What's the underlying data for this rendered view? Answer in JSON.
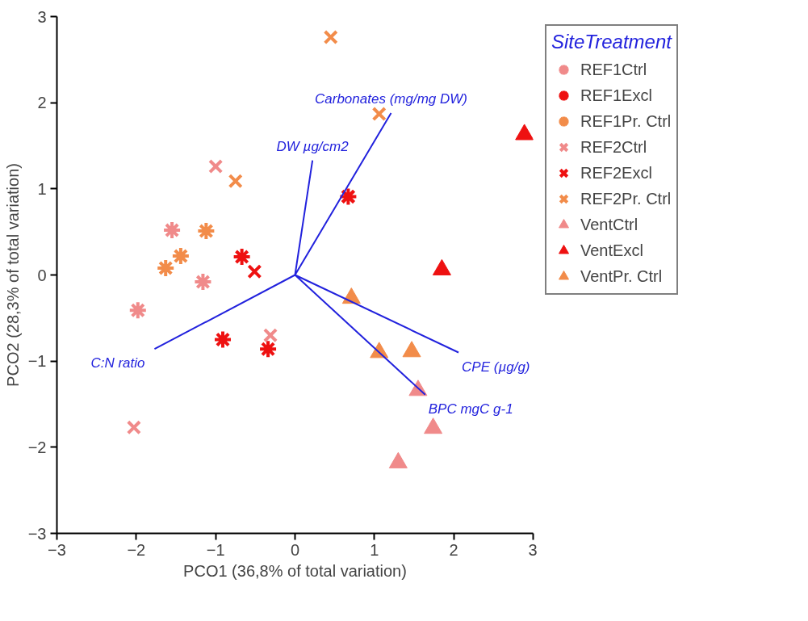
{
  "chart_data": {
    "type": "scatter",
    "xlabel": "PCO1 (36,8% of total variation)",
    "ylabel": "PCO2 (28,3% of total variation)",
    "legend_title": "SiteTreatment",
    "legend": "right",
    "grid": false,
    "xlim": [
      -3,
      3
    ],
    "ylim": [
      -3,
      3
    ],
    "xticks": [
      -3,
      -2,
      -1,
      0,
      1,
      2,
      3
    ],
    "yticks": [
      -3,
      -2,
      -1,
      0,
      1,
      2,
      3
    ],
    "series": [
      {
        "name": "REF1Ctrl",
        "color": "#f08a8a",
        "marker": "cross",
        "x": [
          -1.55,
          -1.16,
          -1.98
        ],
        "values": [
          0.52,
          -0.08,
          -0.41
        ]
      },
      {
        "name": "REF1Excl",
        "color": "#ee1111",
        "marker": "cross",
        "x": [
          -0.67,
          -0.91,
          -0.34,
          0.67
        ],
        "values": [
          0.21,
          -0.75,
          -0.86,
          0.91
        ]
      },
      {
        "name": "REF1Pr. Ctrl",
        "color": "#f28c4a",
        "marker": "cross",
        "x": [
          -1.63,
          -1.44,
          -1.12
        ],
        "values": [
          0.08,
          0.22,
          0.51
        ]
      },
      {
        "name": "REF2Ctrl",
        "color": "#f08a8a",
        "marker": "x",
        "x": [
          -1.0,
          -2.03,
          -0.31
        ],
        "values": [
          1.26,
          -1.77,
          -0.7
        ]
      },
      {
        "name": "REF2Excl",
        "color": "#ee1111",
        "marker": "x",
        "x": [
          -0.51,
          0.67
        ],
        "values": [
          0.04,
          0.91
        ]
      },
      {
        "name": "REF2Pr. Ctrl",
        "color": "#f28c4a",
        "marker": "x",
        "x": [
          0.45,
          1.06,
          -0.75
        ],
        "values": [
          2.76,
          1.87,
          1.09
        ]
      },
      {
        "name": "VentCtrl",
        "color": "#f08a8a",
        "marker": "triangle",
        "x": [
          1.55,
          1.74,
          1.3
        ],
        "values": [
          -1.34,
          -1.78,
          -2.18
        ]
      },
      {
        "name": "VentExcl",
        "color": "#ee1111",
        "marker": "triangle",
        "x": [
          2.89,
          1.85
        ],
        "values": [
          1.63,
          0.06
        ]
      },
      {
        "name": "VentPr. Ctrl",
        "color": "#f28c4a",
        "marker": "triangle",
        "x": [
          0.71,
          1.06,
          1.47
        ],
        "values": [
          -0.27,
          -0.9,
          -0.89
        ]
      },
      {
        "type": "line",
        "color": "#2222dd",
        "x": [
          0,
          0.22,
          null,
          0,
          1.21,
          null,
          0,
          2.06,
          null,
          0,
          1.64,
          null,
          0,
          -1.77
        ],
        "values": [
          0,
          1.33,
          null,
          0,
          1.88,
          null,
          0,
          -0.9,
          null,
          0,
          -1.39,
          null,
          0,
          -0.86
        ]
      }
    ],
    "annotations": [
      "DW µg/cm2",
      "Carbonates (mg/mg DW)",
      "CPE (µg/g)",
      "BPC mgC g-1",
      "C:N ratio"
    ]
  }
}
